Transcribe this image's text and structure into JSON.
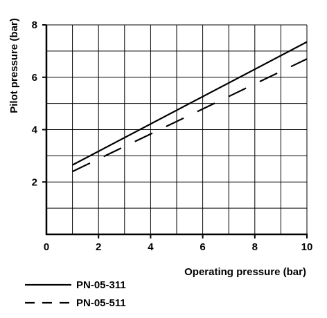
{
  "chart_data": {
    "type": "line",
    "xlabel": "Operating pressure (bar)",
    "ylabel": "Pilot pressure (bar)",
    "xlim": [
      0,
      10
    ],
    "ylim": [
      0,
      8
    ],
    "xticks": [
      "0",
      "2",
      "4",
      "6",
      "8",
      "10"
    ],
    "yticks": [
      "2",
      "4",
      "6",
      "8"
    ],
    "grid": true,
    "legend_position": "bottom-left",
    "series": [
      {
        "name": "PN-05-311",
        "style": "solid",
        "color": "#000000",
        "x": [
          1.0,
          10.0
        ],
        "y": [
          2.65,
          7.35
        ]
      },
      {
        "name": "PN-05-511",
        "style": "dashed",
        "color": "#000000",
        "x": [
          1.0,
          10.0
        ],
        "y": [
          2.4,
          6.7
        ]
      }
    ]
  }
}
